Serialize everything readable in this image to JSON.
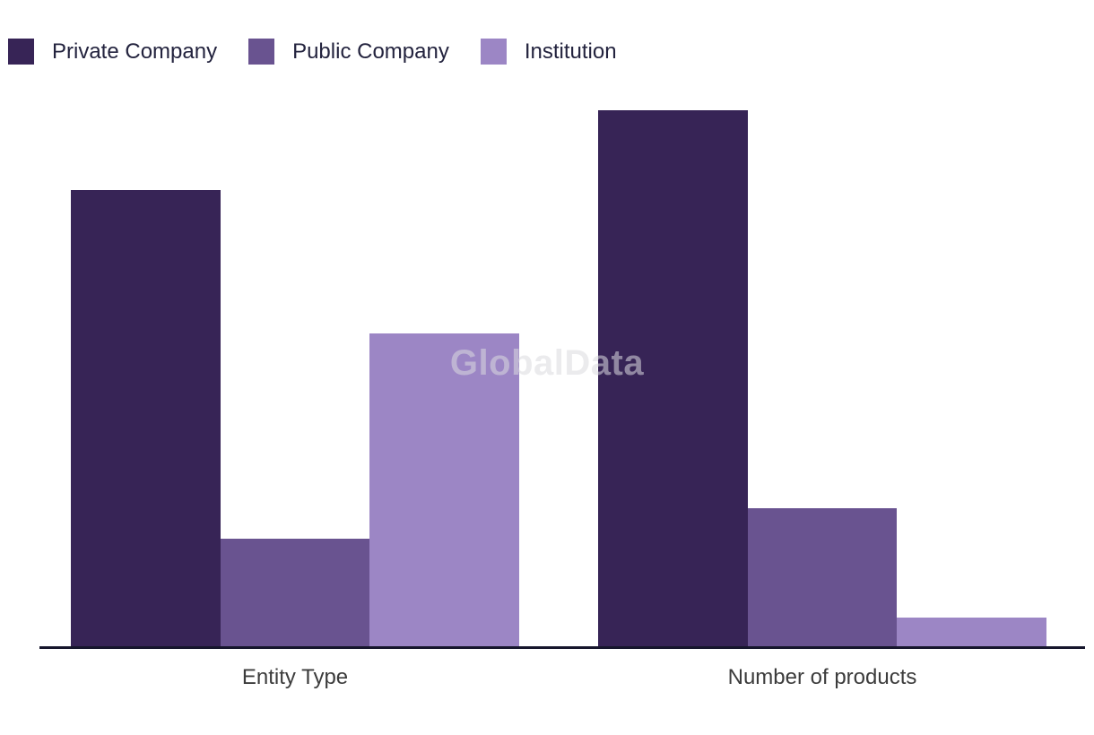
{
  "watermark": "GlobalData",
  "chart_data": {
    "type": "bar",
    "title": "",
    "xlabel": "",
    "ylabel": "",
    "categories": [
      "Entity Type",
      "Number of products"
    ],
    "series": [
      {
        "name": "Private Company",
        "color": "#372456",
        "values": [
          85.2,
          100
        ]
      },
      {
        "name": "Public Company",
        "color": "#695390",
        "values": [
          20.3,
          26
        ]
      },
      {
        "name": "Institution",
        "color": "#9c86c5",
        "values": [
          58.5,
          5.7
        ]
      }
    ],
    "ylim": [
      0,
      100
    ],
    "y_axis_visible": false,
    "gridlines": false,
    "legend_position": "top-left",
    "scale_note": "no y-axis shown; values are relative, tallest bar = 100"
  },
  "colors": {
    "background": "#ffffff",
    "axis_line": "#16162c",
    "legend_label": "#23233e",
    "category_label": "#3c3c3c",
    "watermark": "#dbdbe0"
  }
}
